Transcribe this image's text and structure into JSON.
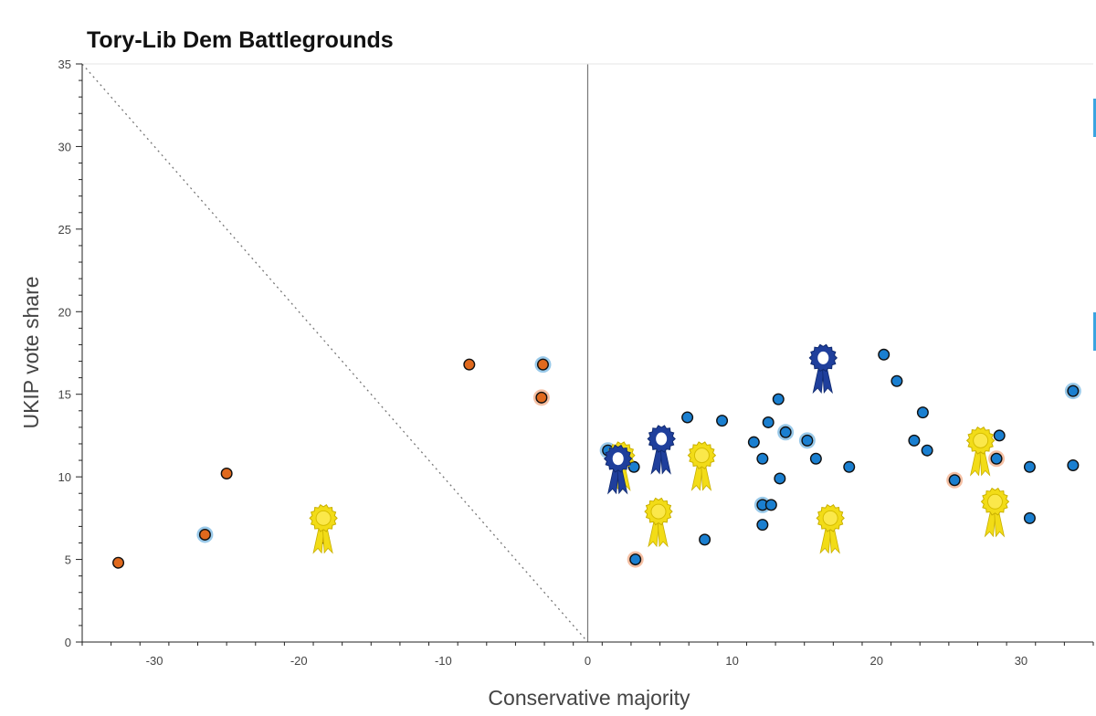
{
  "chart_data": {
    "type": "scatter",
    "title": "Tory-Lib Dem Battlegrounds",
    "xlabel": "Conservative majority",
    "ylabel": "UKIP vote share",
    "xlim": [
      -35,
      35
    ],
    "ylim": [
      0,
      35
    ],
    "x_ticks": [
      -30,
      -20,
      -10,
      0,
      10,
      20,
      30
    ],
    "y_ticks": [
      0,
      5,
      10,
      15,
      20,
      25,
      30,
      35
    ],
    "reference_lines": [
      {
        "type": "vertical",
        "x": 0,
        "style": "solid"
      },
      {
        "type": "diagonal",
        "from": [
          -35,
          35
        ],
        "to": [
          0,
          0
        ],
        "style": "dotted"
      }
    ],
    "colors": {
      "orange": "#e0691d",
      "blue": "#1a7fd0",
      "halo_blue": "#8fc4e8",
      "halo_orange": "#f4b99a",
      "rosette_yellow": "#f2dc17",
      "rosette_blue": "#1f3f9c"
    },
    "series": [
      {
        "name": "orange",
        "color": "#e0691d",
        "points": [
          {
            "x": -32.5,
            "y": 4.8
          },
          {
            "x": -26.5,
            "y": 6.5,
            "halo": "blue"
          },
          {
            "x": -25.0,
            "y": 10.2
          },
          {
            "x": -18.3,
            "y": 6.3
          },
          {
            "x": -8.2,
            "y": 16.8
          },
          {
            "x": -3.1,
            "y": 16.8,
            "halo": "blue"
          },
          {
            "x": -3.2,
            "y": 14.8,
            "halo": "orange"
          }
        ]
      },
      {
        "name": "blue",
        "color": "#1a7fd0",
        "points": [
          {
            "x": 1.4,
            "y": 11.6,
            "halo": "blue"
          },
          {
            "x": 3.2,
            "y": 10.6
          },
          {
            "x": 3.3,
            "y": 5.0,
            "halo": "orange"
          },
          {
            "x": 6.9,
            "y": 13.6
          },
          {
            "x": 8.1,
            "y": 6.2
          },
          {
            "x": 9.3,
            "y": 13.4
          },
          {
            "x": 11.5,
            "y": 12.1
          },
          {
            "x": 12.1,
            "y": 11.1
          },
          {
            "x": 12.1,
            "y": 8.3,
            "halo": "blue"
          },
          {
            "x": 12.1,
            "y": 7.1
          },
          {
            "x": 12.5,
            "y": 13.3
          },
          {
            "x": 12.7,
            "y": 8.3
          },
          {
            "x": 13.2,
            "y": 14.7
          },
          {
            "x": 13.3,
            "y": 9.9
          },
          {
            "x": 13.7,
            "y": 12.7,
            "halo": "blue"
          },
          {
            "x": 15.2,
            "y": 12.2,
            "halo": "blue"
          },
          {
            "x": 15.8,
            "y": 11.1
          },
          {
            "x": 18.1,
            "y": 10.6
          },
          {
            "x": 20.5,
            "y": 17.4
          },
          {
            "x": 21.4,
            "y": 15.8
          },
          {
            "x": 22.6,
            "y": 12.2
          },
          {
            "x": 23.2,
            "y": 13.9
          },
          {
            "x": 23.5,
            "y": 11.6
          },
          {
            "x": 25.4,
            "y": 9.8,
            "halo": "orange"
          },
          {
            "x": 28.3,
            "y": 11.1,
            "halo": "orange"
          },
          {
            "x": 28.5,
            "y": 12.5
          },
          {
            "x": 30.6,
            "y": 10.6
          },
          {
            "x": 30.6,
            "y": 7.5
          },
          {
            "x": 33.6,
            "y": 15.2,
            "halo": "blue"
          },
          {
            "x": 33.6,
            "y": 10.7
          }
        ]
      }
    ],
    "rosettes": [
      {
        "x": -18.3,
        "y": 7.5,
        "color": "yellow"
      },
      {
        "x": 2.3,
        "y": 11.3,
        "color": "yellow"
      },
      {
        "x": 4.9,
        "y": 7.9,
        "color": "yellow"
      },
      {
        "x": 7.9,
        "y": 11.3,
        "color": "yellow"
      },
      {
        "x": 16.8,
        "y": 7.5,
        "color": "yellow"
      },
      {
        "x": 27.2,
        "y": 12.2,
        "color": "yellow"
      },
      {
        "x": 28.2,
        "y": 8.5,
        "color": "yellow"
      },
      {
        "x": 2.1,
        "y": 11.1,
        "color": "blue"
      },
      {
        "x": 5.1,
        "y": 12.3,
        "color": "blue"
      },
      {
        "x": 16.3,
        "y": 17.2,
        "color": "blue"
      }
    ]
  }
}
